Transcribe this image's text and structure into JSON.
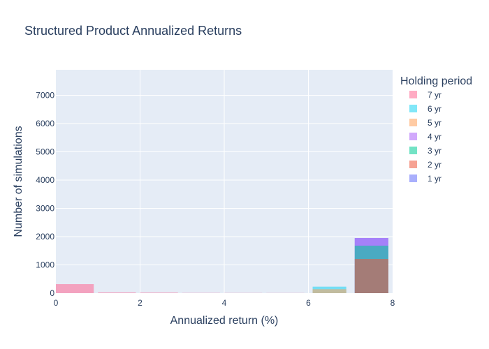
{
  "chart_data": {
    "type": "bar",
    "title": "Structured Product Annualized Returns",
    "xlabel": "Annualized return (%)",
    "ylabel": "Number of simulations",
    "xlim": [
      0,
      8
    ],
    "ylim": [
      0,
      7900
    ],
    "x_ticks": [
      0,
      2,
      4,
      6,
      8
    ],
    "y_ticks": [
      0,
      1000,
      2000,
      3000,
      4000,
      5000,
      6000,
      7000
    ],
    "bar_mode": "overlay",
    "grid": true,
    "legend": {
      "title": "Holding period",
      "placement": "right"
    },
    "bins": [
      {
        "x0": 0,
        "x1": 0.9
      },
      {
        "x0": 1,
        "x1": 1.9
      },
      {
        "x0": 2,
        "x1": 2.9
      },
      {
        "x0": 3,
        "x1": 3.9
      },
      {
        "x0": 4,
        "x1": 4.9
      },
      {
        "x0": 5,
        "x1": 5.9
      },
      {
        "x0": 6.1,
        "x1": 6.9
      },
      {
        "x0": 7.1,
        "x1": 7.9
      }
    ],
    "series": [
      {
        "name": "1 yr",
        "color": "#636efa",
        "values": [
          0,
          0,
          0,
          0,
          0,
          0,
          0,
          1950
        ]
      },
      {
        "name": "4 yr",
        "color": "#ab63fa",
        "values": [
          0,
          0,
          0,
          0,
          0,
          0,
          0,
          1950
        ]
      },
      {
        "name": "3 yr",
        "color": "#00cc96",
        "values": [
          0,
          0,
          0,
          0,
          0,
          0,
          0,
          1680
        ]
      },
      {
        "name": "2 yr",
        "color": "#ef553b",
        "values": [
          0,
          0,
          0,
          0,
          0,
          0,
          0,
          1210
        ]
      },
      {
        "name": "6 yr",
        "color": "#19d3f3",
        "values": [
          0,
          0,
          0,
          0,
          0,
          0,
          230,
          0
        ]
      },
      {
        "name": "5 yr",
        "color": "#ffa15a",
        "values": [
          0,
          0,
          0,
          0,
          0,
          0,
          140,
          0
        ]
      },
      {
        "name": "7 yr",
        "color": "#ff6692",
        "values": [
          320,
          25,
          20,
          8,
          6,
          5,
          0,
          0
        ]
      }
    ],
    "legend_order": [
      "7 yr",
      "6 yr",
      "5 yr",
      "4 yr",
      "3 yr",
      "2 yr",
      "1 yr"
    ]
  }
}
